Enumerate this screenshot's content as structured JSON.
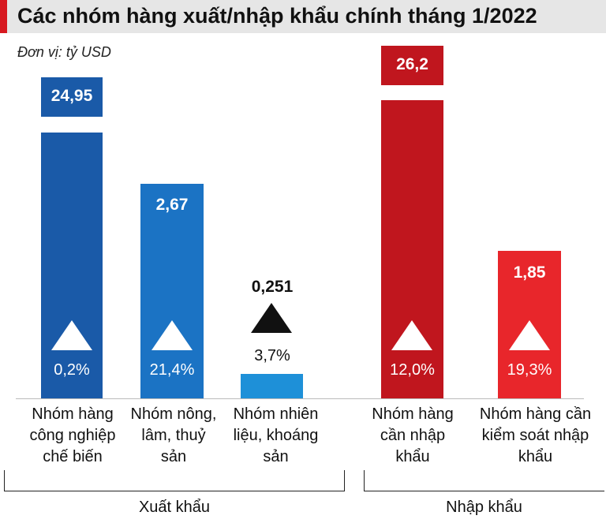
{
  "title": "Các nhóm hàng xuất/nhập khẩu chính tháng 1/2022",
  "unit": "Đơn vị: tỷ USD",
  "groups": [
    {
      "label": "Xuất khẩu",
      "items": [
        {
          "name": "Nhóm hàng công nghiệp chế biến",
          "value": "24,95",
          "change": "0,2%"
        },
        {
          "name": "Nhóm nông, lâm, thuỷ sản",
          "value": "2,67",
          "change": "21,4%"
        },
        {
          "name": "Nhóm nhiên liệu, khoáng sản",
          "value": "0,251",
          "change": "3,7%"
        }
      ]
    },
    {
      "label": "Nhập khẩu",
      "items": [
        {
          "name": "Nhóm hàng cần nhập khẩu",
          "value": "26,2",
          "change": "12,0%"
        },
        {
          "name": "Nhóm hàng cần kiểm soát nhập khẩu",
          "value": "1,85",
          "change": "19,3%"
        }
      ]
    }
  ]
}
